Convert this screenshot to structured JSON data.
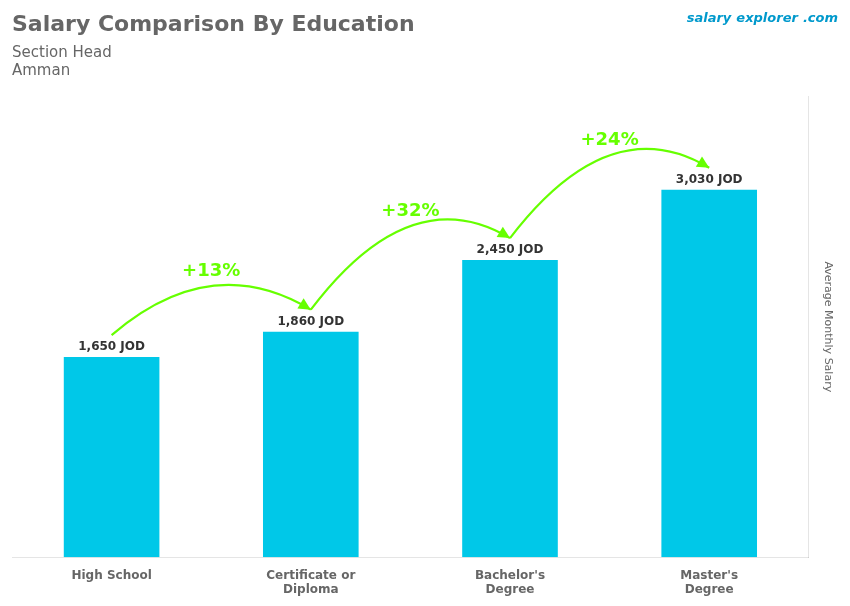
{
  "chart_data": {
    "type": "bar",
    "title": "Salary Comparison By Education",
    "subtitle": "Section Head",
    "city": "Amman",
    "watermark": [
      "salary",
      "explorer",
      ".com"
    ],
    "ylabel": "Average Monthly Salary",
    "categories": [
      "High School",
      "Certificate or\nDiploma",
      "Bachelor's\nDegree",
      "Master's\nDegree"
    ],
    "values": [
      1650,
      1860,
      2450,
      3030
    ],
    "value_labels": [
      "1,650 JOD",
      "1,860 JOD",
      "2,450 JOD",
      "3,030 JOD"
    ],
    "data_labels": true,
    "color": "#00c8e8",
    "changes": [
      {
        "from": "High School",
        "to": "Certificate or\nDiploma",
        "value": 13,
        "label": "+13%",
        "color": "#66ff00"
      },
      {
        "from": "Certificate or\nDiploma",
        "to": "Bachelor's\nDegree",
        "value": 32,
        "label": "+32%",
        "color": "#66ff00"
      },
      {
        "from": "Bachelor's\nDegree",
        "to": "Master's\nDegree",
        "value": 24,
        "label": "+24%",
        "color": "#66ff00"
      }
    ],
    "ylim": [
      0,
      3800
    ],
    "grid": false,
    "tick_labels": "x"
  }
}
